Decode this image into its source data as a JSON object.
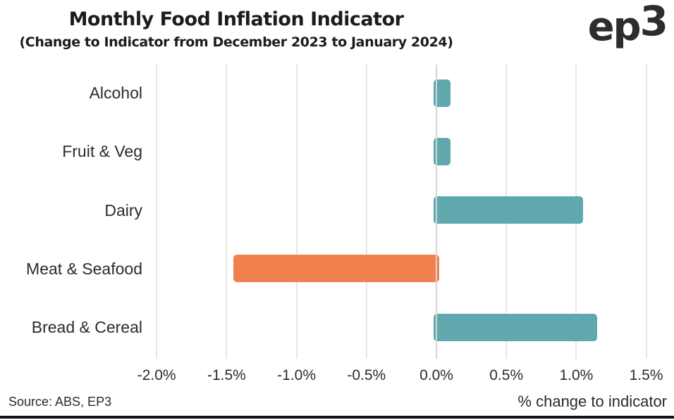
{
  "chart_data": {
    "type": "bar",
    "orientation": "horizontal",
    "title": "Monthly Food Inflation Indicator",
    "subtitle": "(Change to Indicator from December 2023 to January 2024)",
    "categories": [
      "Alcohol",
      "Fruit & Veg",
      "Dairy",
      "Meat & Seafood",
      "Bread & Cereal"
    ],
    "values": [
      0.1,
      0.1,
      1.05,
      -1.45,
      1.15
    ],
    "unit": "%",
    "xlabel": "% change to indicator",
    "ylabel": "",
    "x_ticks": [
      -2.0,
      -1.5,
      -1.0,
      -0.5,
      0.0,
      0.5,
      1.0,
      1.5
    ],
    "x_tick_labels": [
      "-2.0%",
      "-1.5%",
      "-1.0%",
      "-0.5%",
      "0.0%",
      "0.5%",
      "1.0%",
      "1.5%"
    ],
    "xlim": [
      -2.25,
      1.7
    ],
    "grid": true,
    "legend": false,
    "positive_color": "#5FA8AE",
    "negative_color": "#F0814F",
    "gridline_color": "#E9E6E0",
    "zero_line_color": "#D6D6D6"
  },
  "logo": {
    "main": "ep",
    "sup": "3"
  },
  "footer": {
    "source": "Source: ABS, EP3"
  }
}
